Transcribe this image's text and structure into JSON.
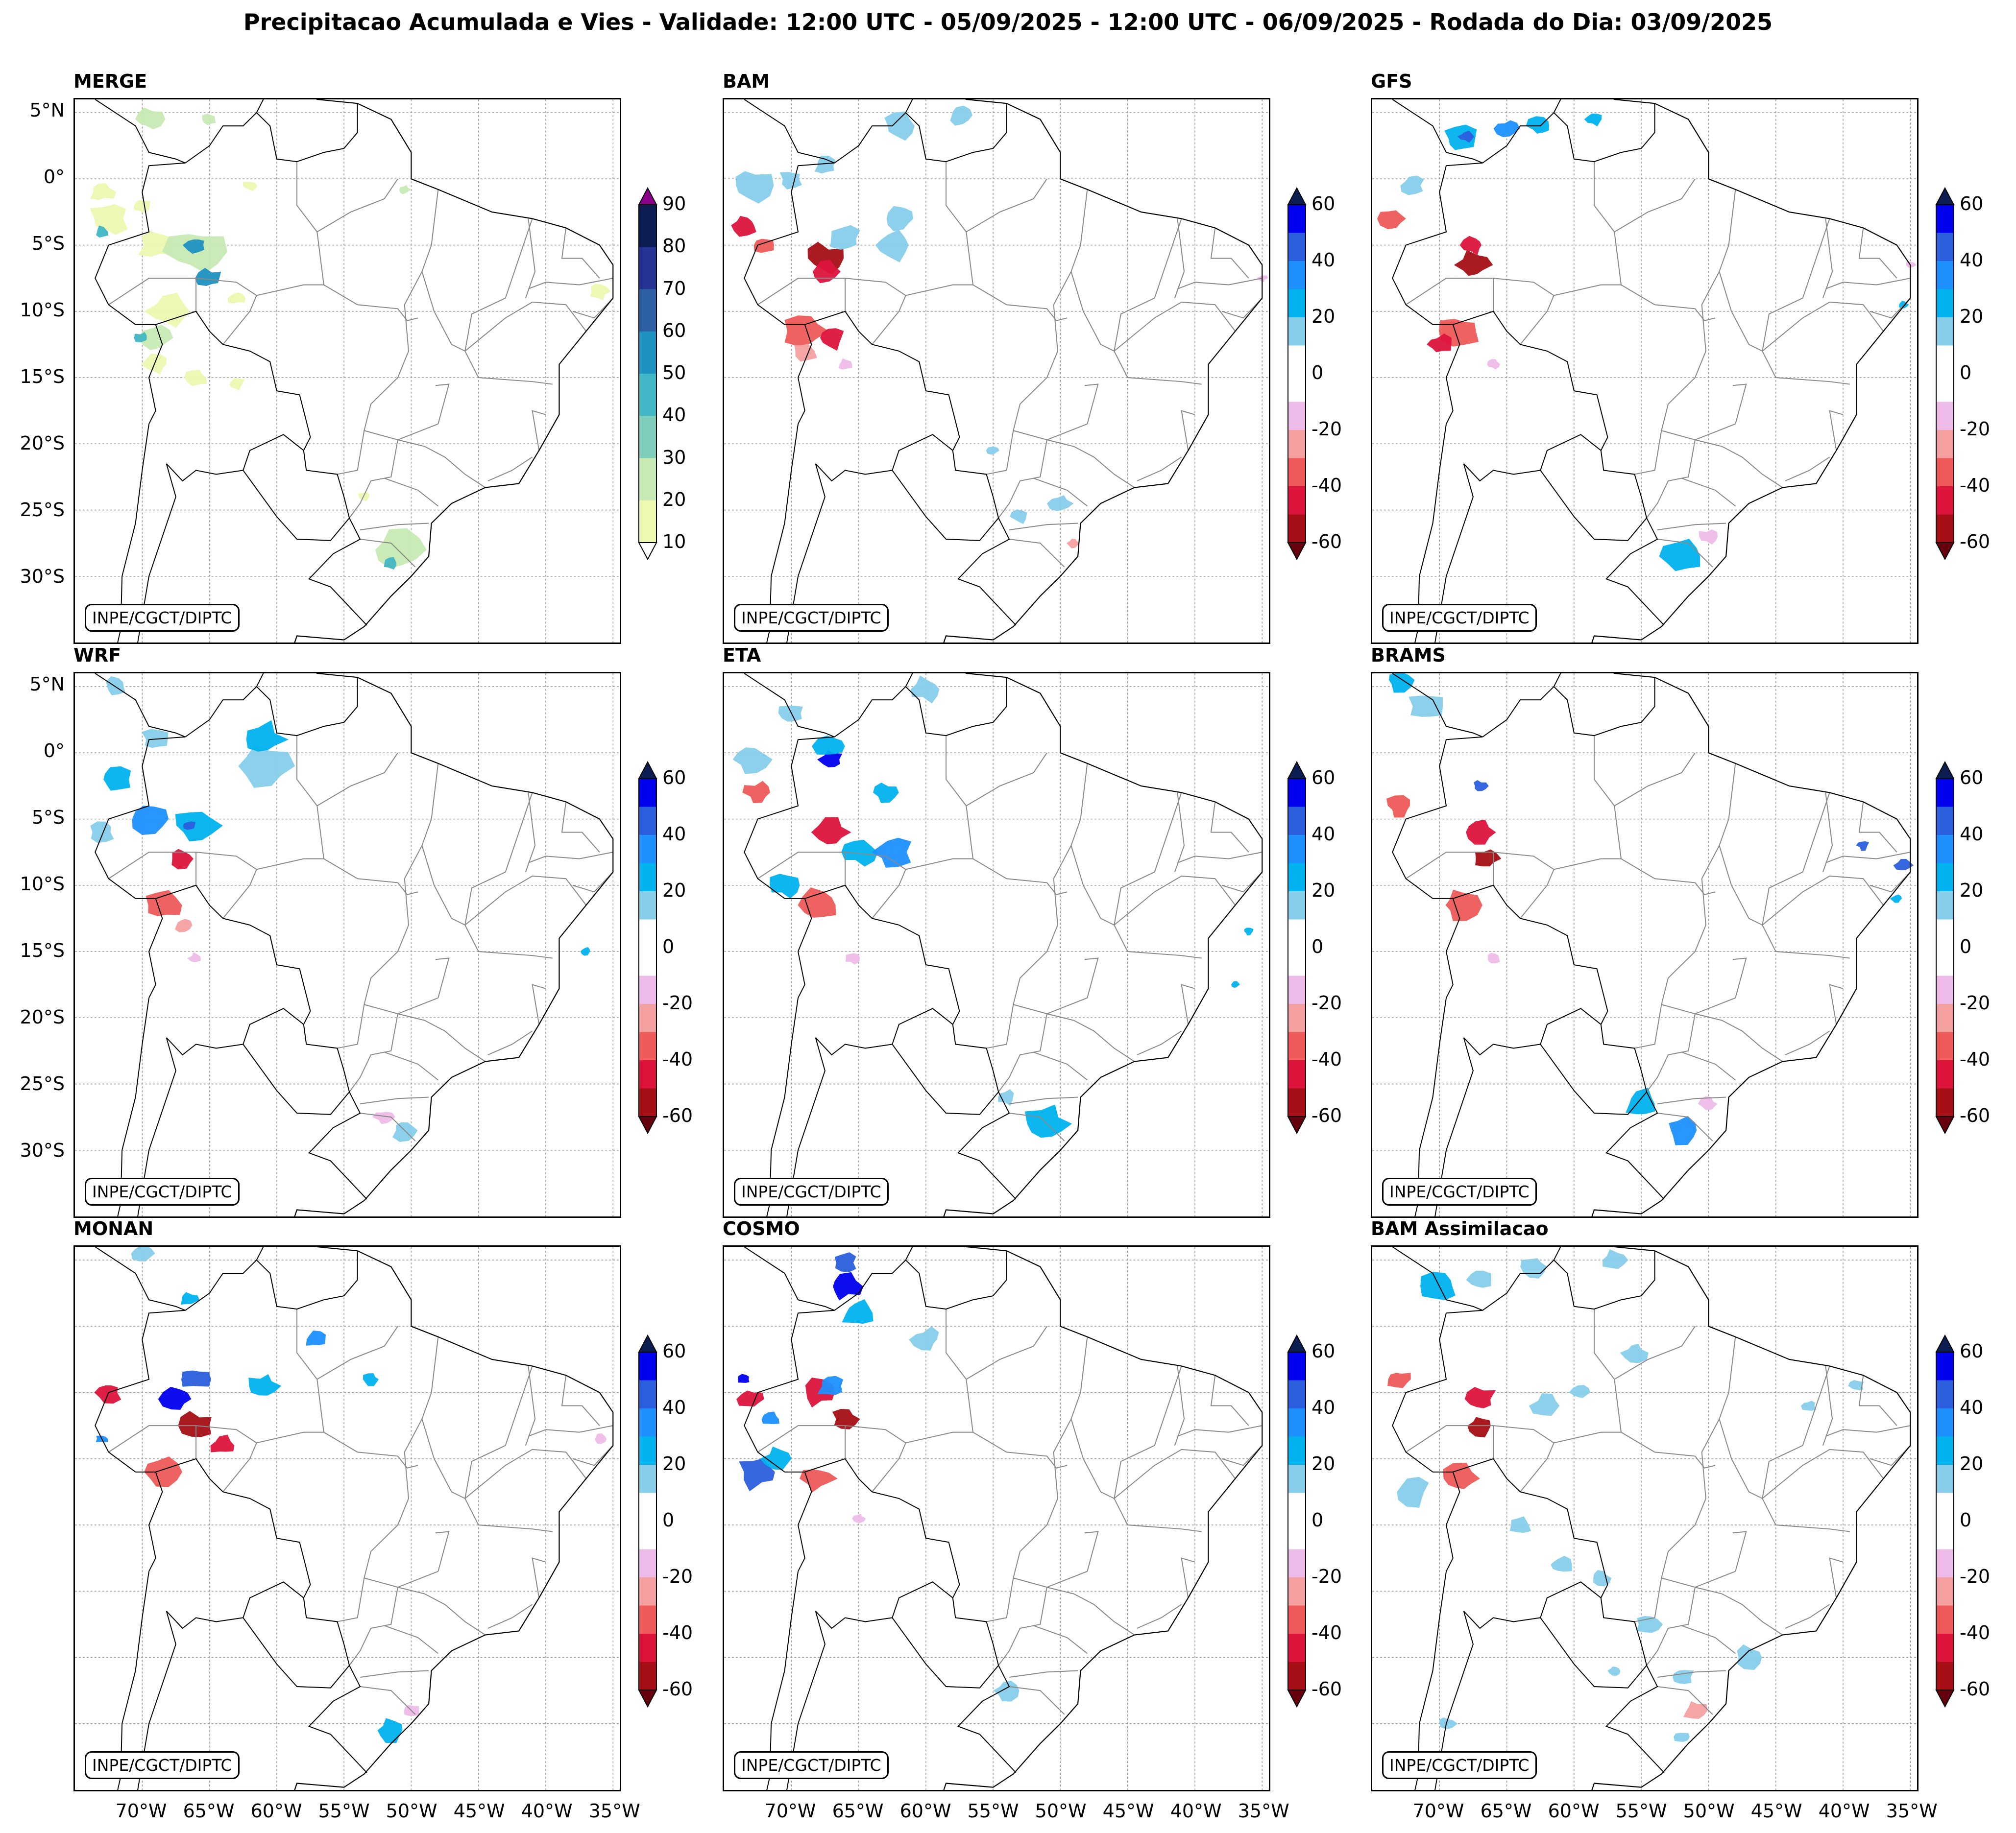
{
  "figure_title": "Precipitacao Acumulada e Vies - Validade: 12:00 UTC - 05/09/2025 - 12:00 UTC - 06/09/2025 - Rodada do Dia: 03/09/2025",
  "credit": "INPE/CGCT/DIPTC",
  "lat_ticks": [
    "5°N",
    "0°",
    "5°S",
    "10°S",
    "15°S",
    "20°S",
    "25°S",
    "30°S"
  ],
  "lon_ticks": [
    "70°W",
    "65°W",
    "60°W",
    "55°W",
    "50°W",
    "45°W",
    "40°W",
    "35°W"
  ],
  "panels": [
    {
      "id": "merge",
      "title": "MERGE",
      "kind": "precip"
    },
    {
      "id": "bam",
      "title": "BAM",
      "kind": "bias"
    },
    {
      "id": "gfs",
      "title": "GFS",
      "kind": "bias"
    },
    {
      "id": "wrf",
      "title": "WRF",
      "kind": "bias"
    },
    {
      "id": "eta",
      "title": "ETA",
      "kind": "bias"
    },
    {
      "id": "brams",
      "title": "BRAMS",
      "kind": "bias"
    },
    {
      "id": "monan",
      "title": "MONAN",
      "kind": "bias"
    },
    {
      "id": "cosmo",
      "title": "COSMO",
      "kind": "bias"
    },
    {
      "id": "bam-assim",
      "title": "BAM Assimilacao",
      "kind": "bias"
    }
  ],
  "precip_colorbar": {
    "ticks": [
      "90",
      "80",
      "70",
      "60",
      "50",
      "40",
      "30",
      "20",
      "10"
    ],
    "colors": [
      "#0b1d51",
      "#253494",
      "#2c5fa4",
      "#1d91c0",
      "#41b6c4",
      "#7fcdbb",
      "#c7e9b4",
      "#edf8b1"
    ],
    "over_color": "#8b008b",
    "under_color": "#ffffff"
  },
  "bias_colorbar": {
    "ticks": [
      "60",
      "40",
      "20",
      "0",
      "-20",
      "-40",
      "-60"
    ],
    "colors": [
      "#0000ee",
      "#2b5fdd",
      "#1e90ff",
      "#00b2ee",
      "#87ceeb",
      "#ffffff",
      "#ffffff",
      "#eebbe8",
      "#f4a0a0",
      "#ee5a5a",
      "#dc143c",
      "#a50f15"
    ],
    "over_color": "#0b1d51",
    "under_color": "#67000d"
  },
  "map_colors": {
    "coast": "#000000",
    "states": "#888888",
    "grid": "#999999"
  }
}
